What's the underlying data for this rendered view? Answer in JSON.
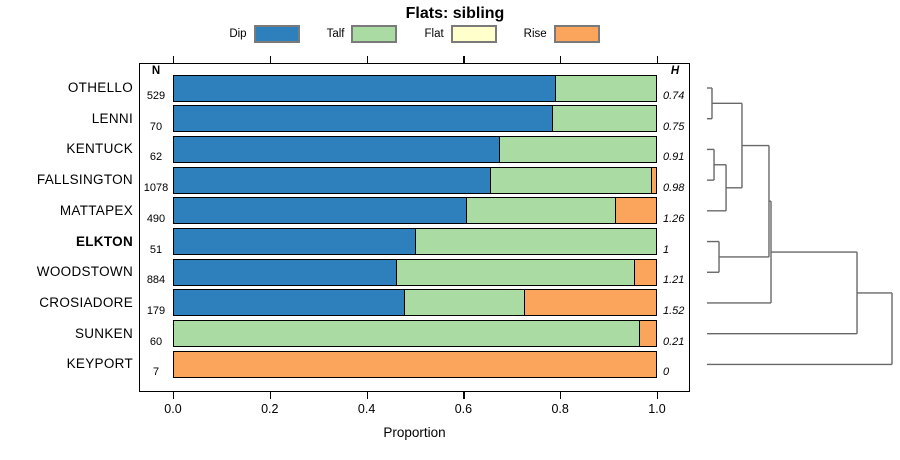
{
  "title": "Flats: sibling",
  "legend": [
    {
      "label": "Dip",
      "color": "#2E80BD"
    },
    {
      "label": "Talf",
      "color": "#A9DBA2"
    },
    {
      "label": "Flat",
      "color": "#FFFFCC"
    },
    {
      "label": "Rise",
      "color": "#FBA55C"
    }
  ],
  "columns": {
    "n_header": "N",
    "h_header": "H"
  },
  "chart_data": {
    "type": "bar",
    "orientation": "horizontal",
    "stacked": true,
    "title": "Flats: sibling",
    "xlabel": "Proportion",
    "xlim": [
      0,
      1
    ],
    "xticks": [
      "0.0",
      "0.2",
      "0.4",
      "0.6",
      "0.8",
      "1.0"
    ],
    "grid": false,
    "legend_position": "top",
    "rows": [
      {
        "label": "OTHELLO",
        "n": "529",
        "h": "0.74",
        "bold": false,
        "segments": [
          {
            "name": "Dip",
            "value": 0.79
          },
          {
            "name": "Talf",
            "value": 0.21
          }
        ]
      },
      {
        "label": "LENNI",
        "n": "70",
        "h": "0.75",
        "bold": false,
        "segments": [
          {
            "name": "Dip",
            "value": 0.785
          },
          {
            "name": "Talf",
            "value": 0.215
          }
        ]
      },
      {
        "label": "KENTUCK",
        "n": "62",
        "h": "0.91",
        "bold": false,
        "segments": [
          {
            "name": "Dip",
            "value": 0.675
          },
          {
            "name": "Talf",
            "value": 0.325
          }
        ]
      },
      {
        "label": "FALLSINGTON",
        "n": "1078",
        "h": "0.98",
        "bold": false,
        "segments": [
          {
            "name": "Dip",
            "value": 0.655
          },
          {
            "name": "Talf",
            "value": 0.335
          },
          {
            "name": "Rise",
            "value": 0.01
          }
        ]
      },
      {
        "label": "MATTAPEX",
        "n": "490",
        "h": "1.26",
        "bold": false,
        "segments": [
          {
            "name": "Dip",
            "value": 0.605
          },
          {
            "name": "Talf",
            "value": 0.31
          },
          {
            "name": "Rise",
            "value": 0.085
          }
        ]
      },
      {
        "label": "ELKTON",
        "n": "51",
        "h": "1",
        "bold": true,
        "segments": [
          {
            "name": "Dip",
            "value": 0.5
          },
          {
            "name": "Talf",
            "value": 0.5
          }
        ]
      },
      {
        "label": "WOODSTOWN",
        "n": "884",
        "h": "1.21",
        "bold": false,
        "segments": [
          {
            "name": "Dip",
            "value": 0.46
          },
          {
            "name": "Talf",
            "value": 0.495
          },
          {
            "name": "Rise",
            "value": 0.045
          }
        ]
      },
      {
        "label": "CROSIADORE",
        "n": "179",
        "h": "1.52",
        "bold": false,
        "segments": [
          {
            "name": "Dip",
            "value": 0.478
          },
          {
            "name": "Talf",
            "value": 0.248
          },
          {
            "name": "Rise",
            "value": 0.274
          }
        ]
      },
      {
        "label": "SUNKEN",
        "n": "60",
        "h": "0.21",
        "bold": false,
        "segments": [
          {
            "name": "Talf",
            "value": 0.965
          },
          {
            "name": "Rise",
            "value": 0.035
          }
        ]
      },
      {
        "label": "KEYPORT",
        "n": "7",
        "h": "0",
        "bold": false,
        "segments": [
          {
            "name": "Rise",
            "value": 1.0
          }
        ]
      }
    ],
    "dendrogram": {
      "merges": [
        {
          "children": [
            "OTHELLO",
            "LENNI"
          ],
          "height": 0.027
        },
        {
          "children": [
            "KENTUCK",
            "FALLSINGTON"
          ],
          "height": 0.038
        },
        {
          "children": [
            "ELKTON",
            "WOODSTOWN"
          ],
          "height": 0.065
        },
        {
          "children": [
            1,
            "MATTAPEX"
          ],
          "height": 0.103
        },
        {
          "children": [
            0,
            3
          ],
          "height": 0.189
        },
        {
          "children": [
            4,
            2
          ],
          "height": 0.335
        },
        {
          "children": [
            5,
            "CROSIADORE"
          ],
          "height": 0.346
        },
        {
          "children": [
            6,
            "SUNKEN"
          ],
          "height": 0.811
        },
        {
          "children": [
            7,
            "KEYPORT"
          ],
          "height": 1.0
        }
      ],
      "line_color": "#686868"
    }
  }
}
